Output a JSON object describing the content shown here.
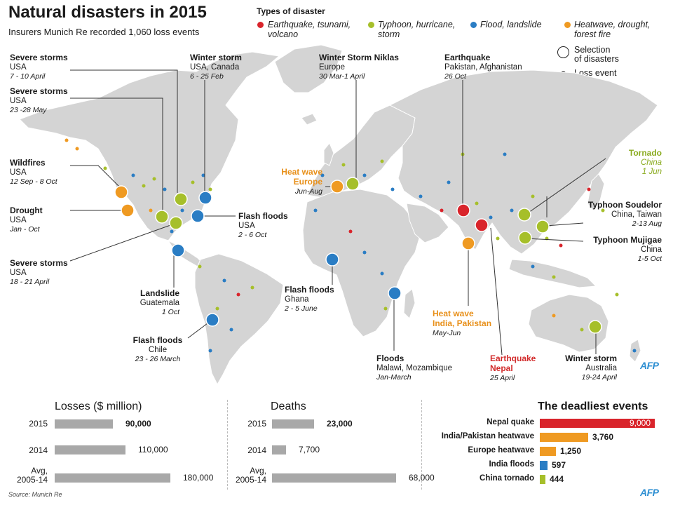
{
  "header": {
    "title": "Natural disasters in 2015",
    "subtitle": "Insurers Munich Re recorded 1,060 loss events"
  },
  "legend": {
    "title": "Types of disaster",
    "items": [
      {
        "label": "Earthquake, tsunami, volcano",
        "line1": "Earthquake, tsunami,",
        "line2": "volcano",
        "color": "#d9242b"
      },
      {
        "label": "Typhoon, hurricane, storm",
        "line1": "Typhoon, hurricane,",
        "line2": "storm",
        "color": "#a6bf2a"
      },
      {
        "label": "Flood, landslide",
        "line1": "Flood, landslide",
        "line2": "",
        "color": "#2a7dc4"
      },
      {
        "label": "Heatwave, drought, forest fire",
        "line1": "Heatwave, drought,",
        "line2": "forest fire",
        "color": "#ef9a22"
      }
    ],
    "size_big_line1": "Selection",
    "size_big_line2": "of disasters",
    "size_small": "Loss event"
  },
  "callouts": {
    "severe_storms_1": {
      "title": "Severe storms",
      "place": "USA",
      "date": "7 - 10 April"
    },
    "severe_storms_2": {
      "title": "Severe storms",
      "place": "USA",
      "date": "23 -28 May"
    },
    "wildfires": {
      "title": "Wildfires",
      "place": "USA",
      "date": "12 Sep - 8 Oct"
    },
    "drought": {
      "title": "Drought",
      "place": "USA",
      "date": "Jan - Oct"
    },
    "severe_storms_3": {
      "title": "Severe storms",
      "place": "USA",
      "date": "18 - 21 April"
    },
    "winter_storm_us": {
      "title": "Winter storm",
      "place": "USA, Canada",
      "date": "6 - 25 Feb"
    },
    "flash_floods_us": {
      "title": "Flash floods",
      "place": "USA",
      "date": "2 - 6 Oct"
    },
    "landslide": {
      "title": "Landslide",
      "place": "Guatemala",
      "date": "1 Oct"
    },
    "flash_floods_chile": {
      "title": "Flash floods",
      "place": "Chile",
      "date": "23 - 26 March"
    },
    "niklas": {
      "title": "Winter Storm Niklas",
      "place": "Europe",
      "date": "30 Mar-1 April"
    },
    "heatwave_europe": {
      "title1": "Heat wave",
      "title2": "Europe",
      "date": "Jun-Aug"
    },
    "flash_floods_ghana": {
      "title": "Flash floods",
      "place": "Ghana",
      "date": "2 - 5 June"
    },
    "floods_malawi": {
      "title": "Floods",
      "place": "Malawi, Mozambique",
      "date": "Jan-March"
    },
    "earthquake_pak": {
      "title": "Earthquake",
      "place": "Pakistan, Afghanistan",
      "date": "26 Oct"
    },
    "heatwave_india": {
      "title1": "Heat wave",
      "title2": "India, Pakistan",
      "date": "May-Jun"
    },
    "earthquake_nepal": {
      "title1": "Earthquake",
      "title2": "Nepal",
      "date": "25 April"
    },
    "tornado_china": {
      "title": "Tornado",
      "place": "China",
      "date": "1 Jun"
    },
    "soudelor": {
      "title": "Typhoon Soudelor",
      "place": "China, Taiwan",
      "date": "2-13 Aug"
    },
    "mujigae": {
      "title": "Typhoon Mujigae",
      "place": "China",
      "date": "1-5 Oct"
    },
    "winter_storm_au": {
      "title": "Winter storm",
      "place": "Australia",
      "date": "19-24 April"
    }
  },
  "brand": {
    "afp": "AFP"
  },
  "source": "Source: Munich Re",
  "chart_data": [
    {
      "type": "bar",
      "title": "Losses ($ million)",
      "categories": [
        "2015",
        "2014",
        "Avg, 2005-14"
      ],
      "values": [
        90000,
        110000,
        180000
      ],
      "labels": [
        "90,000",
        "110,000",
        "180,000"
      ],
      "color": "#a8a8a8",
      "xlim": [
        0,
        180000
      ]
    },
    {
      "type": "bar",
      "title": "Deaths",
      "categories": [
        "2015",
        "2014",
        "Avg, 2005-14"
      ],
      "values": [
        23000,
        7700,
        68000
      ],
      "labels": [
        "23,000",
        "7,700",
        "68,000"
      ],
      "color": "#a8a8a8",
      "xlim": [
        0,
        68000
      ]
    },
    {
      "type": "bar",
      "title": "The deadliest events",
      "categories": [
        "Nepal quake",
        "India/Pakistan heatwave",
        "Europe heatwave",
        "India floods",
        "China tornado"
      ],
      "values": [
        9000,
        3760,
        1250,
        597,
        444
      ],
      "labels": [
        "9,000",
        "3,760",
        "1,250",
        "597",
        "444"
      ],
      "colors": [
        "#d9242b",
        "#ef9a22",
        "#ef9a22",
        "#2a7dc4",
        "#a6bf2a"
      ],
      "xlim": [
        0,
        9000
      ]
    }
  ]
}
